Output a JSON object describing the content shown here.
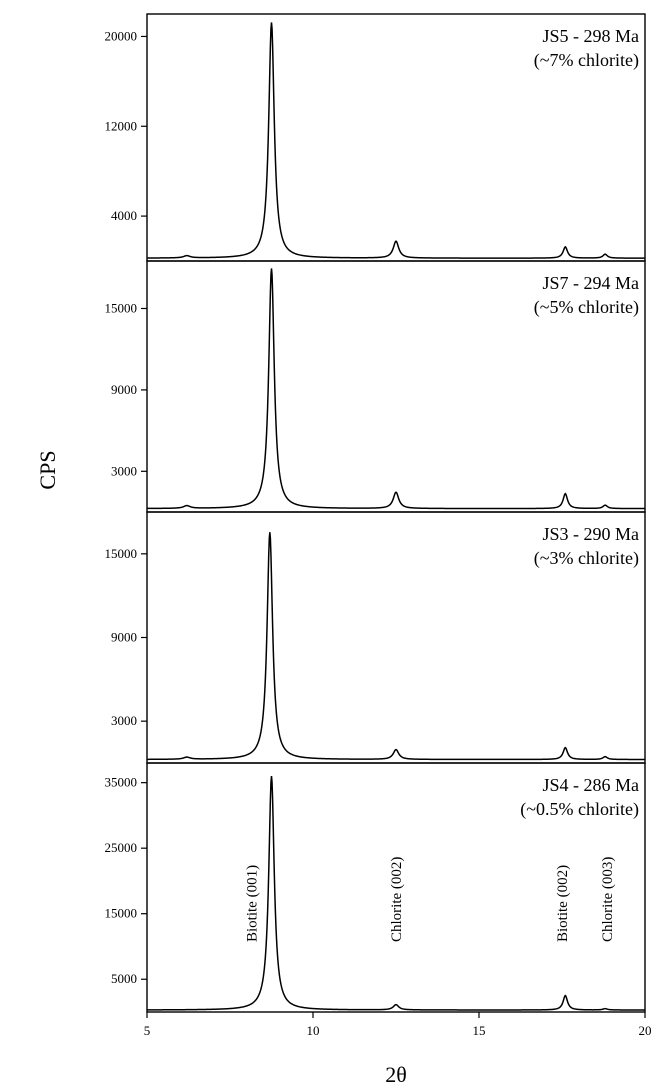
{
  "chart_data": {
    "type": "line",
    "title": "",
    "xlabel": "2θ",
    "ylabel": "CPS",
    "xlim": [
      5,
      20
    ],
    "x_ticks": [
      5,
      10,
      15,
      20
    ],
    "grid": false,
    "shared_x": true,
    "panels": [
      {
        "id": "JS5",
        "label_line1": "JS5 - 298 Ma",
        "label_line2": "(~7% chlorite)",
        "ylim": [
          0,
          22000
        ],
        "y_ticks": [
          4000,
          12000,
          20000
        ],
        "background": 250,
        "peaks": [
          {
            "x": 6.2,
            "height": 200,
            "width": 0.12
          },
          {
            "x": 8.75,
            "height": 21000,
            "width": 0.1
          },
          {
            "x": 12.5,
            "height": 1500,
            "width": 0.1
          },
          {
            "x": 17.6,
            "height": 1000,
            "width": 0.08
          },
          {
            "x": 18.8,
            "height": 350,
            "width": 0.08
          }
        ],
        "annotations": []
      },
      {
        "id": "JS7",
        "label_line1": "JS7 - 294 Ma",
        "label_line2": "(~5% chlorite)",
        "ylim": [
          0,
          18500
        ],
        "y_ticks": [
          3000,
          9000,
          15000
        ],
        "background": 250,
        "peaks": [
          {
            "x": 6.2,
            "height": 200,
            "width": 0.12
          },
          {
            "x": 8.75,
            "height": 17700,
            "width": 0.1
          },
          {
            "x": 12.5,
            "height": 1200,
            "width": 0.1
          },
          {
            "x": 17.6,
            "height": 1100,
            "width": 0.08
          },
          {
            "x": 18.8,
            "height": 250,
            "width": 0.08
          }
        ],
        "annotations": []
      },
      {
        "id": "JS3",
        "label_line1": "JS3 - 290 Ma",
        "label_line2": "(~3% chlorite)",
        "ylim": [
          0,
          18000
        ],
        "y_ticks": [
          3000,
          9000,
          15000
        ],
        "background": 250,
        "peaks": [
          {
            "x": 6.2,
            "height": 150,
            "width": 0.12
          },
          {
            "x": 8.7,
            "height": 16300,
            "width": 0.1
          },
          {
            "x": 12.5,
            "height": 700,
            "width": 0.1
          },
          {
            "x": 17.6,
            "height": 850,
            "width": 0.08
          },
          {
            "x": 18.8,
            "height": 200,
            "width": 0.08
          }
        ],
        "annotations": []
      },
      {
        "id": "JS4",
        "label_line1": "JS4 - 286 Ma",
        "label_line2": "(~0.5% chlorite)",
        "ylim": [
          0,
          38000
        ],
        "y_ticks": [
          5000,
          15000,
          25000,
          35000
        ],
        "background": 300,
        "peaks": [
          {
            "x": 8.75,
            "height": 35700,
            "width": 0.1
          },
          {
            "x": 12.5,
            "height": 800,
            "width": 0.1
          },
          {
            "x": 17.6,
            "height": 2200,
            "width": 0.08
          },
          {
            "x": 18.8,
            "height": 200,
            "width": 0.08
          }
        ],
        "annotations": [
          {
            "text": "Biotite (001)",
            "x": 8.15
          },
          {
            "text": "Chlorite (002)",
            "x": 12.5
          },
          {
            "text": "Biotite (002)",
            "x": 17.5
          },
          {
            "text": "Chlorite (003)",
            "x": 18.85
          }
        ]
      }
    ]
  }
}
